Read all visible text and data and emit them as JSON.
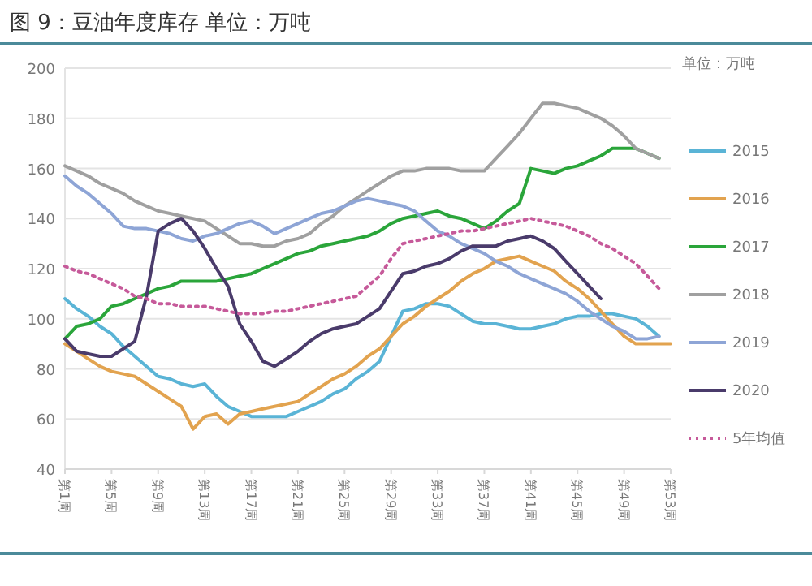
{
  "chart_data": {
    "type": "line",
    "title": "图 9：豆油年度库存 单位：万吨",
    "annotations": [
      "单位：万吨"
    ],
    "categories": [
      "第1周",
      null,
      null,
      null,
      "第5周",
      null,
      null,
      null,
      "第9周",
      null,
      null,
      null,
      "第13周",
      null,
      null,
      null,
      "第17周",
      null,
      null,
      null,
      "第21周",
      null,
      null,
      null,
      "第25周",
      null,
      null,
      null,
      "第29周",
      null,
      null,
      null,
      "第33周",
      null,
      null,
      null,
      "第37周",
      null,
      null,
      null,
      "第41周",
      null,
      null,
      null,
      "第45周",
      null,
      null,
      null,
      "第49周",
      null,
      null,
      null,
      "第53周"
    ],
    "ylim": [
      40,
      200
    ],
    "yticks": [
      40,
      60,
      80,
      100,
      120,
      140,
      160,
      180,
      200
    ],
    "grid": "y",
    "legend": "right",
    "series": [
      {
        "name": "2015",
        "color": "#5ab4d6",
        "values": [
          108,
          104,
          101,
          97,
          94,
          89,
          85,
          81,
          77,
          76,
          74,
          73,
          74,
          69,
          65,
          63,
          61,
          61,
          61,
          61,
          63,
          65,
          67,
          70,
          72,
          76,
          79,
          83,
          93,
          103,
          104,
          106,
          106,
          105,
          102,
          99,
          98,
          98,
          97,
          96,
          96,
          97,
          98,
          100,
          101,
          101,
          102,
          102,
          101,
          100,
          97,
          93,
          null
        ]
      },
      {
        "name": "2016",
        "color": "#e2a34f",
        "values": [
          90,
          87,
          84,
          81,
          79,
          78,
          77,
          74,
          71,
          68,
          65,
          56,
          61,
          62,
          58,
          62,
          63,
          64,
          65,
          66,
          67,
          70,
          73,
          76,
          78,
          81,
          85,
          88,
          93,
          98,
          101,
          105,
          108,
          111,
          115,
          118,
          120,
          123,
          124,
          125,
          123,
          121,
          119,
          115,
          112,
          108,
          103,
          98,
          93,
          90,
          90,
          90,
          90
        ]
      },
      {
        "name": "2017",
        "color": "#2aa53a",
        "values": [
          92,
          97,
          98,
          100,
          105,
          106,
          108,
          110,
          112,
          113,
          115,
          115,
          115,
          115,
          116,
          117,
          118,
          120,
          122,
          124,
          126,
          127,
          129,
          130,
          131,
          132,
          133,
          135,
          138,
          140,
          141,
          142,
          143,
          141,
          140,
          138,
          136,
          139,
          143,
          146,
          160,
          159,
          158,
          160,
          161,
          163,
          165,
          168,
          168,
          168,
          166,
          164,
          null
        ]
      },
      {
        "name": "2018",
        "color": "#a0a0a0",
        "values": [
          161,
          159,
          157,
          154,
          152,
          150,
          147,
          145,
          143,
          142,
          141,
          140,
          139,
          136,
          133,
          130,
          130,
          129,
          129,
          131,
          132,
          134,
          138,
          141,
          145,
          148,
          151,
          154,
          157,
          159,
          159,
          160,
          160,
          160,
          159,
          159,
          159,
          164,
          169,
          174,
          180,
          186,
          186,
          185,
          184,
          182,
          180,
          177,
          173,
          168,
          166,
          164,
          null
        ]
      },
      {
        "name": "2019",
        "color": "#8ea5d6",
        "values": [
          157,
          153,
          150,
          146,
          142,
          137,
          136,
          136,
          135,
          134,
          132,
          131,
          133,
          134,
          136,
          138,
          139,
          137,
          134,
          136,
          138,
          140,
          142,
          143,
          145,
          147,
          148,
          147,
          146,
          145,
          143,
          139,
          135,
          133,
          130,
          128,
          126,
          123,
          121,
          118,
          116,
          114,
          112,
          110,
          107,
          103,
          100,
          97,
          95,
          92,
          92,
          93,
          null
        ]
      },
      {
        "name": "2020",
        "color": "#4a3b6b",
        "values": [
          92,
          87,
          86,
          85,
          85,
          88,
          91,
          109,
          135,
          138,
          140,
          135,
          128,
          120,
          113,
          98,
          91,
          83,
          81,
          84,
          87,
          91,
          94,
          96,
          97,
          98,
          101,
          104,
          111,
          118,
          119,
          121,
          122,
          124,
          127,
          129,
          129,
          129,
          131,
          132,
          133,
          131,
          128,
          123,
          118,
          113,
          108,
          null,
          null,
          null,
          null,
          null,
          null
        ]
      },
      {
        "name": "5年均值",
        "color": "#c65a9a",
        "line_style": "dotted",
        "values": [
          121,
          119,
          118,
          116,
          114,
          112,
          109,
          108,
          106,
          106,
          105,
          105,
          105,
          104,
          103,
          102,
          102,
          102,
          103,
          103,
          104,
          105,
          106,
          107,
          108,
          109,
          113,
          117,
          124,
          130,
          131,
          132,
          133,
          134,
          135,
          135,
          136,
          137,
          138,
          139,
          140,
          139,
          138,
          137,
          135,
          133,
          130,
          128,
          125,
          122,
          117,
          112,
          null
        ]
      }
    ]
  }
}
